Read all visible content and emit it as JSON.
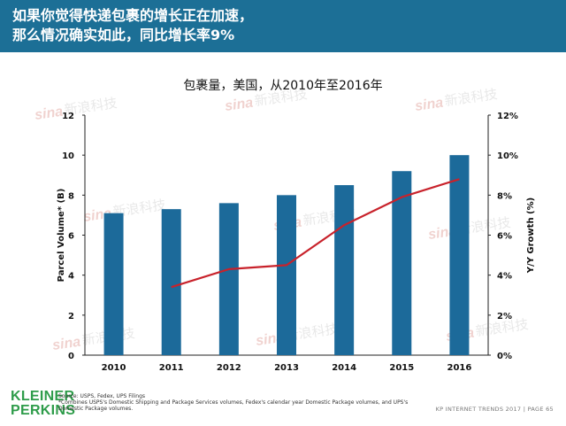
{
  "header": {
    "title_line1": "如果你觉得快递包裹的增长正在加速，",
    "title_line2": "那么情况确实如此，同比增长率9%"
  },
  "chart_data": {
    "type": "bar",
    "title": "包裹量，美国，从2010年至2016年",
    "categories": [
      "2010",
      "2011",
      "2012",
      "2013",
      "2014",
      "2015",
      "2016"
    ],
    "ylabel": "Parcel Volume* (B)",
    "y2label": "Y/Y Growth (%)",
    "ylim": [
      0,
      12
    ],
    "y2lim": [
      0,
      12
    ],
    "yticks": [
      "0",
      "2",
      "4",
      "6",
      "8",
      "10",
      "12"
    ],
    "y2ticks": [
      "0%",
      "2%",
      "4%",
      "6%",
      "8%",
      "10%",
      "12%"
    ],
    "series": [
      {
        "type": "bar",
        "axis": "left",
        "values": [
          7.1,
          7.3,
          7.6,
          8.0,
          8.5,
          9.2,
          10.0
        ],
        "color": "#1c6a9a"
      },
      {
        "type": "line",
        "axis": "right",
        "values": [
          null,
          3.4,
          4.3,
          4.5,
          6.5,
          7.9,
          8.8
        ],
        "color": "#c8222b"
      }
    ],
    "grid": false
  },
  "watermark": {
    "text": "新浪科技",
    "logo": "sina"
  },
  "footer": {
    "logo_line1": "KLEINER",
    "logo_line2": "PERKINS",
    "source": "Source: USPS, Fedex, UPS Filings",
    "note": "*Combines USPS's Domestic Shipping and Package Services volumes, Fedex's calendar year Domestic Package volumes, and UPS's Domestic Package volumes.",
    "page_label": "KP INTERNET TRENDS 2017  |  PAGE 65"
  }
}
